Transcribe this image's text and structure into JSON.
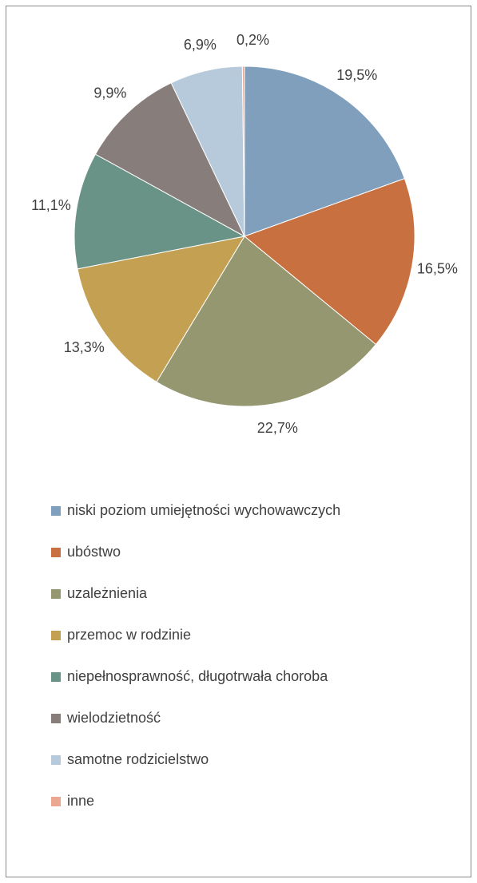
{
  "chart_data": {
    "type": "pie",
    "categories": [
      "niski poziom umiejętności wychowawczych",
      "ubóstwo",
      "uzależnienia",
      "przemoc w rodzinie",
      "niepełnosprawność, długotrwała choroba",
      "wielodzietność",
      "samotne rodzicielstwo",
      "inne"
    ],
    "values": [
      19.5,
      16.5,
      22.7,
      13.3,
      11.1,
      9.9,
      6.9,
      0.2
    ],
    "value_labels": [
      "19,5%",
      "16,5%",
      "22,7%",
      "13,3%",
      "11,1%",
      "9,9%",
      "6,9%",
      "0,2%"
    ],
    "colors": [
      "#7f9fbd",
      "#c8703f",
      "#94976f",
      "#c4a052",
      "#6a9387",
      "#877d7a",
      "#b7cadb",
      "#e9a88f"
    ],
    "legend": "bottom"
  }
}
